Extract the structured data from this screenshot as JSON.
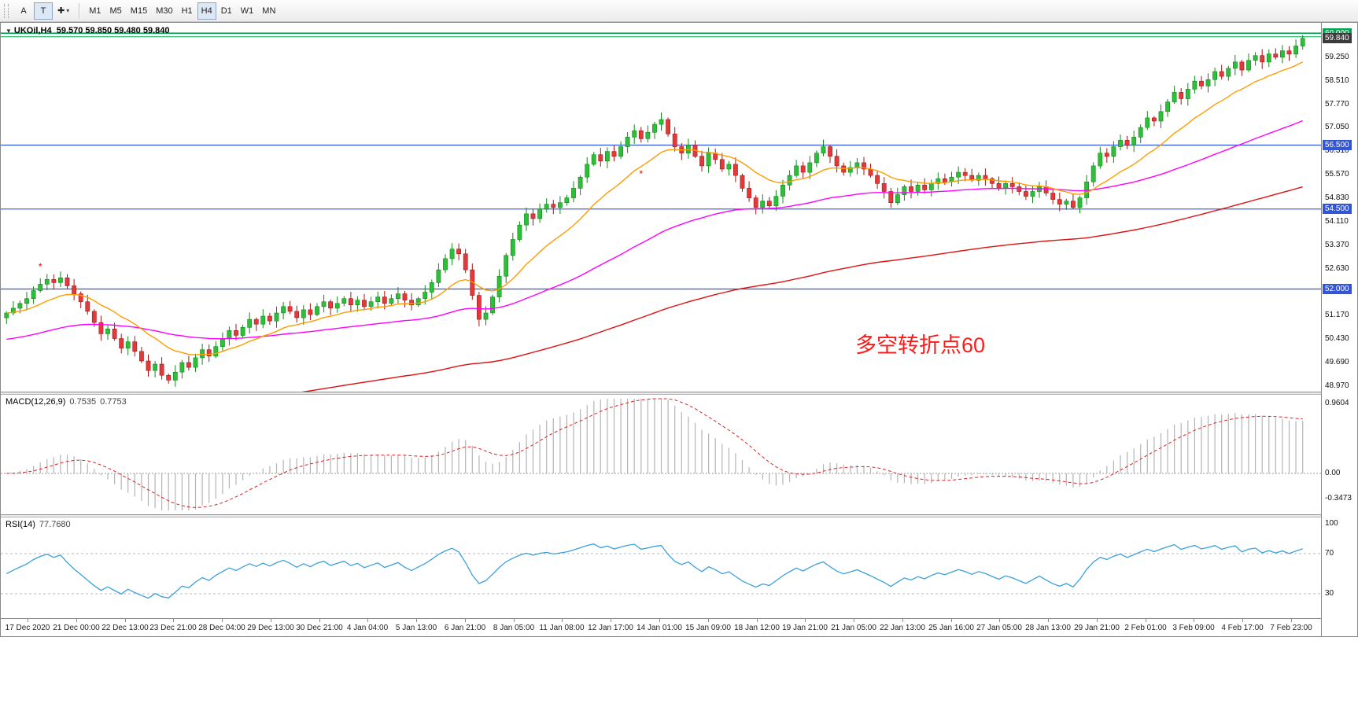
{
  "toolbar": {
    "tool_a": "A",
    "tool_t": "T",
    "timeframes": [
      {
        "label": "M1",
        "active": false
      },
      {
        "label": "M5",
        "active": false
      },
      {
        "label": "M15",
        "active": false
      },
      {
        "label": "M30",
        "active": false
      },
      {
        "label": "H1",
        "active": false
      },
      {
        "label": "H4",
        "active": true
      },
      {
        "label": "D1",
        "active": false
      },
      {
        "label": "W1",
        "active": false
      },
      {
        "label": "MN",
        "active": false
      }
    ]
  },
  "icons": {
    "symbol_marker": "▼",
    "cursor_tool": "✚",
    "dropdown_caret": "▾"
  },
  "chart": {
    "title_symbol": "UKOil,H4",
    "title_ohlc": "59.570 59.850 59.480 59.840"
  },
  "chart_data": {
    "type": "candlestick",
    "symbol": "UKOil",
    "timeframe": "H4",
    "current": {
      "open": "59.570",
      "high": "59.850",
      "low": "59.480",
      "close": "59.840"
    },
    "first_open": 51.1,
    "closes": [
      51.25,
      51.4,
      51.55,
      51.7,
      51.95,
      52.15,
      52.3,
      52.2,
      52.35,
      52.1,
      51.85,
      51.6,
      51.3,
      50.95,
      50.6,
      50.75,
      50.45,
      50.15,
      50.35,
      50.05,
      49.75,
      49.45,
      49.65,
      49.3,
      49.15,
      49.4,
      49.7,
      49.55,
      49.85,
      50.1,
      49.9,
      50.2,
      50.45,
      50.7,
      50.55,
      50.8,
      51.05,
      50.9,
      51.15,
      51.0,
      51.25,
      51.45,
      51.3,
      51.1,
      51.35,
      51.2,
      51.45,
      51.6,
      51.4,
      51.55,
      51.7,
      51.5,
      51.65,
      51.45,
      51.6,
      51.75,
      51.55,
      51.7,
      51.85,
      51.65,
      51.5,
      51.7,
      51.9,
      52.2,
      52.6,
      52.95,
      53.25,
      53.1,
      52.6,
      51.8,
      51.05,
      51.25,
      51.75,
      52.4,
      53.05,
      53.55,
      54.0,
      54.35,
      54.2,
      54.5,
      54.65,
      54.55,
      54.7,
      54.85,
      55.15,
      55.5,
      55.9,
      56.2,
      56.0,
      56.3,
      56.15,
      56.45,
      56.75,
      56.95,
      56.7,
      56.9,
      57.15,
      57.3,
      56.85,
      56.45,
      56.25,
      56.5,
      56.15,
      55.85,
      56.25,
      56.05,
      55.75,
      55.9,
      55.55,
      55.15,
      54.85,
      54.55,
      54.75,
      54.6,
      54.9,
      55.25,
      55.55,
      55.85,
      55.65,
      55.95,
      56.25,
      56.45,
      56.15,
      55.85,
      55.65,
      55.8,
      55.95,
      55.75,
      55.55,
      55.3,
      55.05,
      54.7,
      54.95,
      55.2,
      55.05,
      55.25,
      55.1,
      55.3,
      55.45,
      55.35,
      55.5,
      55.65,
      55.55,
      55.4,
      55.55,
      55.45,
      55.3,
      55.15,
      55.3,
      55.2,
      55.05,
      54.9,
      55.05,
      55.2,
      55.0,
      54.8,
      54.65,
      54.75,
      54.55,
      54.85,
      55.35,
      55.85,
      56.25,
      56.15,
      56.45,
      56.65,
      56.5,
      56.75,
      57.05,
      57.35,
      57.25,
      57.55,
      57.85,
      58.15,
      57.95,
      58.25,
      58.5,
      58.35,
      58.55,
      58.8,
      58.65,
      58.9,
      59.1,
      58.85,
      59.15,
      59.3,
      59.1,
      59.35,
      59.25,
      59.45,
      59.35,
      59.6,
      59.84
    ],
    "x_labels": [
      "17 Dec 2020",
      "21 Dec 00:00",
      "22 Dec 13:00",
      "23 Dec 21:00",
      "28 Dec 04:00",
      "29 Dec 13:00",
      "30 Dec 21:00",
      "4 Jan 04:00",
      "5 Jan 13:00",
      "6 Jan 21:00",
      "8 Jan 05:00",
      "11 Jan 08:00",
      "12 Jan 17:00",
      "14 Jan 01:00",
      "15 Jan 09:00",
      "18 Jan 12:00",
      "19 Jan 21:00",
      "21 Jan 05:00",
      "22 Jan 13:00",
      "25 Jan 16:00",
      "27 Jan 05:00",
      "28 Jan 13:00",
      "29 Jan 21:00",
      "2 Feb 01:00",
      "3 Feb 09:00",
      "4 Feb 17:00",
      "7 Feb 23:00"
    ],
    "price_ticks": [
      "59.250",
      "58.510",
      "57.770",
      "57.050",
      "56.310",
      "55.570",
      "54.830",
      "54.110",
      "53.370",
      "52.630",
      "51.910",
      "51.170",
      "50.430",
      "49.690",
      "48.970"
    ],
    "levels": [
      {
        "price": 60.0,
        "color": "#00a650",
        "width": 1.6
      },
      {
        "price": 59.89,
        "color": "#00a650",
        "width": 1
      },
      {
        "price": 56.5,
        "color": "#3355d8",
        "width": 1.2
      },
      {
        "price": 54.5,
        "color": "#3355d8",
        "width": 1.2
      },
      {
        "price": 52.0,
        "color": "#3355d8",
        "width": 1.2
      }
    ],
    "axis_flags": [
      {
        "text": "60.000",
        "price": 60.0,
        "bg": "#00a650"
      },
      {
        "text": "59.840",
        "price": 59.84,
        "bg": "#3c3c3c"
      },
      {
        "text": "56.500",
        "price": 56.5,
        "bg": "#3355d8"
      },
      {
        "text": "54.500",
        "price": 54.5,
        "bg": "#3355d8"
      },
      {
        "text": "52.000",
        "price": 52.0,
        "bg": "#3355d8"
      }
    ],
    "moving_averages": [
      {
        "name": "slow-ma",
        "color": "#dd1111",
        "alpha": 0.013,
        "seed": 47.2
      },
      {
        "name": "medium-ma",
        "color": "#ff00ff",
        "alpha": 0.032,
        "seed": 50.4
      },
      {
        "name": "fast-ma",
        "color": "#ff9c00",
        "alpha": 0.13,
        "seed": null
      }
    ],
    "markers": [
      {
        "bar": 5,
        "price": 52.6
      },
      {
        "bar": 94,
        "price": 55.5
      }
    ],
    "macd": {
      "label": "MACD(12,26,9)",
      "value_main": "0.7535",
      "value_signal": "0.7753",
      "axis": [
        "0.9604",
        "0.00",
        "-0.3473"
      ],
      "histogram_color": "#b4b4b4",
      "signal_color": "#e02020",
      "params": [
        12,
        26,
        9
      ]
    },
    "rsi": {
      "label": "RSI(14)",
      "value": "77.7680",
      "axis": [
        "100",
        "70",
        "30"
      ],
      "levels": [
        70,
        30
      ],
      "color": "#3aa0dc",
      "period": 14
    },
    "annotation": {
      "text": "多空转折点60",
      "color": "#ff1a1a"
    }
  }
}
